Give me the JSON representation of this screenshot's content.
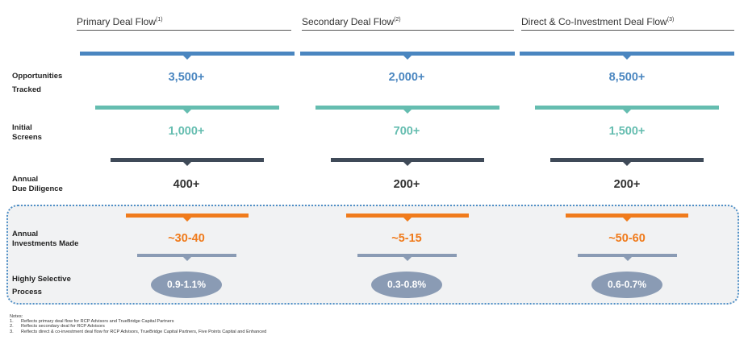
{
  "colors": {
    "opportunities": "#4a86c0",
    "screens": "#65bdb0",
    "diligence": "#3f4a58",
    "investments": "#f07b1c",
    "selective": "#8a9bb4",
    "highlight_border": "#4f8fc6"
  },
  "columns": [
    {
      "title": "Primary Deal Flow",
      "note_ref": "(1)",
      "opportunities": "3,500+",
      "screens": "1,000+",
      "diligence": "400+",
      "investments": "~30-40",
      "selective": "0.9-1.1%"
    },
    {
      "title": "Secondary Deal Flow",
      "note_ref": "(2)",
      "opportunities": "2,000+",
      "screens": "700+",
      "diligence": "200+",
      "investments": "~5-15",
      "selective": "0.3-0.8%"
    },
    {
      "title": "Direct & Co-Investment Deal Flow",
      "note_ref": "(3)",
      "opportunities": "8,500+",
      "screens": "1,500+",
      "diligence": "200+",
      "investments": "~50-60",
      "selective": "0.6-0.7%"
    }
  ],
  "rows": {
    "opportunities": {
      "line1": "Opportunities",
      "line2": "Tracked"
    },
    "screens": {
      "line1": "Initial",
      "line2": "Screens"
    },
    "diligence": {
      "line1": "Annual",
      "line2": "Due Diligence"
    },
    "investments": {
      "line1": "Annual",
      "line2": "Investments Made"
    },
    "selective": {
      "line1": "Highly Selective",
      "line2": "Process"
    }
  },
  "notes": {
    "heading": "Notes:",
    "items": [
      {
        "num": "1.",
        "text": "Reflects primary deal flow for RCP Advisors and TrueBridge Capital Partners"
      },
      {
        "num": "2.",
        "text": "Reflects secondary deal for RCP Advisors"
      },
      {
        "num": "3.",
        "text": "Reflects direct & co-investment deal flow for RCP Advisors, TrueBridge Capital Partners, Five Points Capital and Enhanced"
      }
    ]
  }
}
